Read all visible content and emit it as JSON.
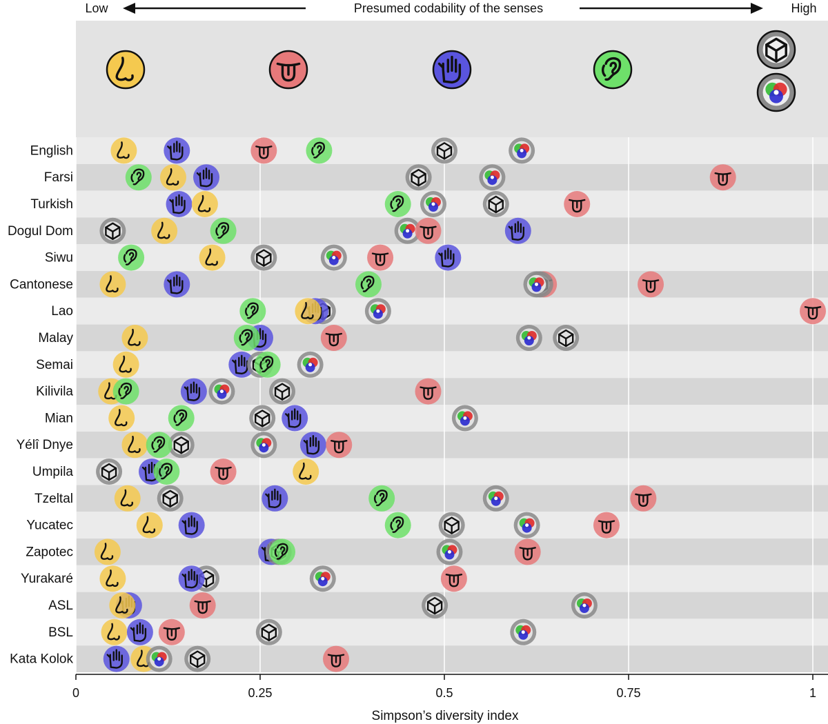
{
  "chart_data": {
    "type": "scatter",
    "header": {
      "left_label": "Low",
      "center_label": "Presumed codability of the senses",
      "right_label": "High"
    },
    "xlabel": "Simpson’s diversity index",
    "xlim": [
      0,
      1
    ],
    "xticks": [
      {
        "value": 0,
        "label": "0"
      },
      {
        "value": 0.25,
        "label": "0.25"
      },
      {
        "value": 0.5,
        "label": "0.5"
      },
      {
        "value": 0.75,
        "label": "0.75"
      },
      {
        "value": 1,
        "label": "1"
      }
    ],
    "senses": [
      {
        "key": "smell",
        "name": "Smell",
        "icon": "nose-icon",
        "color": "#f5c94f"
      },
      {
        "key": "taste",
        "name": "Taste",
        "icon": "tongue-icon",
        "color": "#e6797a"
      },
      {
        "key": "touch",
        "name": "Touch",
        "icon": "hand-icon",
        "color": "#5a55de"
      },
      {
        "key": "sound",
        "name": "Sound",
        "icon": "ear-icon",
        "color": "#6ee06a"
      },
      {
        "key": "shape",
        "name": "Shape",
        "icon": "cube-icon",
        "color": "#8a8a8a"
      },
      {
        "key": "colour",
        "name": "Colour",
        "icon": "color-wheel-icon",
        "color": "#8a8a8a"
      }
    ],
    "series": [
      {
        "name": "English",
        "values": {
          "smell": 0.065,
          "touch": 0.137,
          "taste": 0.255,
          "sound": 0.33,
          "shape": 0.5,
          "colour": 0.605
        }
      },
      {
        "name": "Farsi",
        "values": {
          "sound": 0.085,
          "smell": 0.132,
          "touch": 0.177,
          "shape": 0.465,
          "colour": 0.565,
          "taste": 0.878
        }
      },
      {
        "name": "Turkish",
        "values": {
          "touch": 0.14,
          "smell": 0.175,
          "sound": 0.437,
          "colour": 0.485,
          "shape": 0.57,
          "taste": 0.68
        }
      },
      {
        "name": "Dogul Dom",
        "values": {
          "shape": 0.05,
          "smell": 0.12,
          "sound": 0.2,
          "colour": 0.45,
          "taste": 0.478,
          "touch": 0.6
        }
      },
      {
        "name": "Siwu",
        "values": {
          "sound": 0.075,
          "smell": 0.185,
          "shape": 0.255,
          "colour": 0.35,
          "taste": 0.413,
          "touch": 0.505
        }
      },
      {
        "name": "Cantonese",
        "values": {
          "smell": 0.05,
          "touch": 0.137,
          "sound": 0.397,
          "taste": 0.635,
          "shape": 0.63,
          "colour": 0.625,
          "taste_2": 0.78
        }
      },
      {
        "name": "Lao",
        "values": {
          "sound": 0.24,
          "shape": 0.335,
          "touch": 0.325,
          "smell": 0.315,
          "colour": 0.41,
          "taste": 1.0
        }
      },
      {
        "name": "Malay",
        "values": {
          "smell": 0.08,
          "touch": 0.25,
          "sound": 0.232,
          "taste": 0.35,
          "colour": 0.615,
          "shape": 0.665
        }
      },
      {
        "name": "Semai",
        "values": {
          "smell": 0.068,
          "touch": 0.225,
          "shape": 0.25,
          "sound": 0.26,
          "colour": 0.318
        }
      },
      {
        "name": "Kilivila",
        "values": {
          "smell": 0.048,
          "sound": 0.068,
          "touch": 0.16,
          "colour": 0.198,
          "shape": 0.28,
          "taste": 0.478
        }
      },
      {
        "name": "Mian",
        "values": {
          "smell": 0.062,
          "sound": 0.143,
          "shape": 0.253,
          "touch": 0.297,
          "colour": 0.528
        }
      },
      {
        "name": "Yélî Dnye",
        "values": {
          "smell": 0.08,
          "shape": 0.143,
          "sound": 0.113,
          "colour": 0.255,
          "touch": 0.322,
          "taste": 0.357
        }
      },
      {
        "name": "Umpila",
        "values": {
          "shape": 0.045,
          "touch": 0.103,
          "sound": 0.123,
          "taste": 0.2,
          "smell": 0.312
        }
      },
      {
        "name": "Tzeltal",
        "values": {
          "smell": 0.07,
          "shape": 0.128,
          "touch": 0.27,
          "sound": 0.415,
          "colour": 0.57,
          "taste": 0.77
        }
      },
      {
        "name": "Yucatec",
        "values": {
          "smell": 0.1,
          "touch": 0.157,
          "sound": 0.437,
          "shape": 0.51,
          "colour": 0.612,
          "taste": 0.72
        }
      },
      {
        "name": "Zapotec",
        "values": {
          "smell": 0.043,
          "touch": 0.265,
          "shape": 0.275,
          "sound": 0.28,
          "colour": 0.507,
          "taste": 0.613
        }
      },
      {
        "name": "Yurakaré",
        "values": {
          "smell": 0.05,
          "shape": 0.177,
          "touch": 0.157,
          "colour": 0.335,
          "taste": 0.513
        }
      },
      {
        "name": "ASL",
        "values": {
          "touch": 0.072,
          "smell": 0.063,
          "taste": 0.172,
          "shape": 0.487,
          "colour": 0.69
        }
      },
      {
        "name": "BSL",
        "values": {
          "smell": 0.052,
          "touch": 0.087,
          "taste": 0.13,
          "shape": 0.262,
          "colour": 0.607
        }
      },
      {
        "name": "Kata Kolok",
        "values": {
          "touch": 0.055,
          "smell": 0.092,
          "colour": 0.113,
          "shape": 0.165,
          "taste": 0.353
        }
      }
    ]
  }
}
